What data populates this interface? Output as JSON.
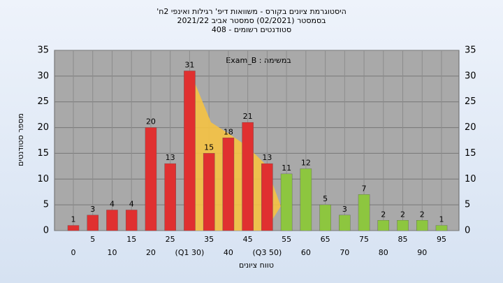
{
  "chart_data": {
    "type": "bar",
    "title": "היסטוגרמת ציונים בקורס - משוואות דיפ' רגילות ואינפי 2ח'",
    "subtitle": "בסמסטר (02/2021) סמסטר אביב 2021/22",
    "subtitle2": "סטודנטים רשומים - 408",
    "annotation": "במשימה : Exam_B",
    "y_label": "מספר סטודנטים",
    "x_label": "טווח ציונים",
    "categories": [
      "0",
      "5",
      "10",
      "15",
      "20",
      "25",
      "(Q1 30)",
      "35",
      "40",
      "45",
      "(Q3 50)",
      "55",
      "60",
      "65",
      "70",
      "75",
      "80",
      "85",
      "90",
      "95"
    ],
    "values": [
      1,
      3,
      4,
      4,
      20,
      13,
      31,
      15,
      18,
      21,
      13,
      11,
      12,
      5,
      3,
      7,
      2,
      2,
      2,
      1
    ],
    "colors": [
      "#e03030",
      "#e03030",
      "#e03030",
      "#e03030",
      "#e03030",
      "#e03030",
      "#e03030",
      "#e03030",
      "#e03030",
      "#e03030",
      "#e03030",
      "#8dc63f",
      "#8dc63f",
      "#8dc63f",
      "#8dc63f",
      "#8dc63f",
      "#8dc63f",
      "#8dc63f",
      "#8dc63f",
      "#8dc63f"
    ],
    "ylim": [
      0,
      35
    ],
    "yticks": [
      0,
      5,
      10,
      15,
      20,
      25,
      30,
      35
    ],
    "grid": true
  }
}
